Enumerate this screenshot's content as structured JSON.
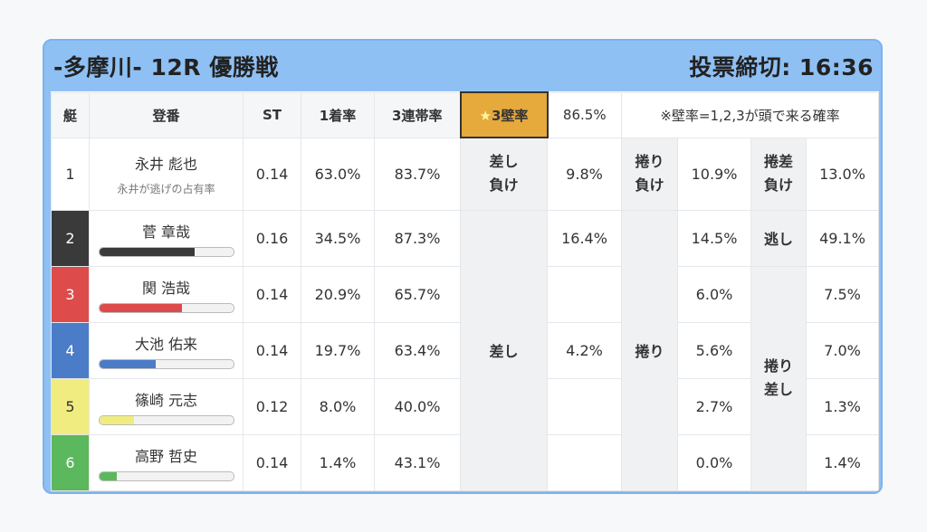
{
  "header": {
    "race_title": "-多摩川- 12R 優勝戦",
    "deadline": "投票締切: 16:36"
  },
  "columns": {
    "boat": "艇",
    "racer": "登番",
    "st": "ST",
    "first_rate": "1着率",
    "top3_rate": "3連帯率",
    "wall_star": "★",
    "wall_label": "3壁率",
    "wall_value": "86.5%",
    "note": "※壁率=1,2,3が頭で来る確率"
  },
  "rows": [
    {
      "boat": "1",
      "name": "永井 彪也",
      "sub": "永井が逃げの占有率",
      "st": "0.14",
      "first": "63.0%",
      "top3": "83.7%",
      "bar": 0,
      "color": ""
    },
    {
      "boat": "2",
      "name": "菅 章哉",
      "st": "0.16",
      "first": "34.5%",
      "top3": "87.3%",
      "bar": 0.71,
      "color": "#3a3a3a"
    },
    {
      "boat": "3",
      "name": "関 浩哉",
      "st": "0.14",
      "first": "20.9%",
      "top3": "65.7%",
      "bar": 0.62,
      "color": "#de4b4b"
    },
    {
      "boat": "4",
      "name": "大池 佑来",
      "st": "0.14",
      "first": "19.7%",
      "top3": "63.4%",
      "bar": 0.42,
      "color": "#4a7cc8"
    },
    {
      "boat": "5",
      "name": "篠崎 元志",
      "st": "0.12",
      "first": "8.0%",
      "top3": "40.0%",
      "bar": 0.26,
      "color": "#f0ec80"
    },
    {
      "boat": "6",
      "name": "高野 哲史",
      "st": "0.14",
      "first": "1.4%",
      "top3": "43.1%",
      "bar": 0.13,
      "color": "#5cb85c"
    }
  ],
  "kimarite": {
    "sashi_make_1": "差し",
    "sashi_make_2": "負け",
    "sashi_make_val": "9.8%",
    "makuri_make_1": "捲り",
    "makuri_make_2": "負け",
    "makuri_make_val": "10.9%",
    "makurisashi_make_1": "捲差",
    "makurisashi_make_2": "負け",
    "makurisashi_make_val": "13.0%",
    "nige_label": "逃し",
    "nige_val": "49.1%",
    "sashi_label": "差し",
    "sashi_vals": [
      "16.4%",
      "",
      "4.2%",
      "",
      ""
    ],
    "makuri_label": "捲り",
    "makuri_vals": [
      "14.5%",
      "6.0%",
      "5.6%",
      "2.7%",
      "0.0%"
    ],
    "makurisashi_label_1": "捲り",
    "makurisashi_label_2": "差し",
    "makurisashi_vals": [
      "7.5%",
      "7.0%",
      "1.3%",
      "1.4%"
    ]
  }
}
